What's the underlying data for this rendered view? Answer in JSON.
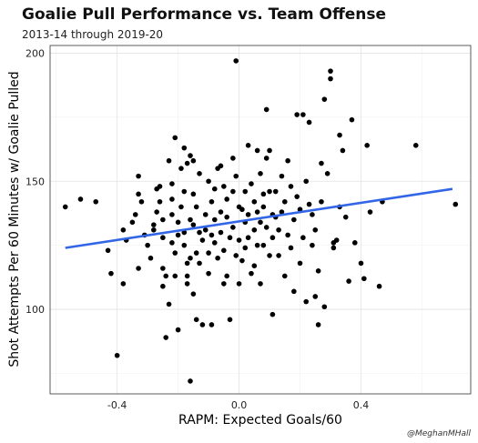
{
  "chart_data": {
    "type": "scatter",
    "title": "Goalie Pull Performance vs. Team Offense",
    "subtitle": "2013-14 through 2019-20",
    "xlabel": "RAPM: Expected Goals/60",
    "ylabel": "Shot Attempts Per 60 Minutes w/ Goalie Pulled",
    "caption": "@MeghanMHall",
    "xlim": [
      -0.62,
      0.76
    ],
    "ylim": [
      67,
      203
    ],
    "x_ticks": [
      -0.4,
      0.0,
      0.4
    ],
    "x_tick_labels": [
      "-0.4",
      "0.0",
      "0.4"
    ],
    "y_ticks": [
      100,
      150,
      200
    ],
    "y_tick_labels": [
      "100",
      "150",
      "200"
    ],
    "grid": true,
    "trend_line": {
      "x": [
        -0.57,
        0.7
      ],
      "y": [
        124,
        147
      ],
      "color": "#3366e6"
    },
    "point_color": "#000000",
    "points": [
      [
        -0.57,
        140
      ],
      [
        -0.52,
        143
      ],
      [
        -0.47,
        142
      ],
      [
        -0.43,
        123
      ],
      [
        -0.42,
        114
      ],
      [
        -0.4,
        82
      ],
      [
        -0.38,
        110
      ],
      [
        -0.38,
        131
      ],
      [
        -0.37,
        127
      ],
      [
        -0.35,
        134
      ],
      [
        -0.34,
        137
      ],
      [
        -0.33,
        145
      ],
      [
        -0.33,
        116
      ],
      [
        -0.33,
        152
      ],
      [
        -0.32,
        142
      ],
      [
        -0.31,
        129
      ],
      [
        -0.3,
        125
      ],
      [
        -0.29,
        120
      ],
      [
        -0.28,
        131
      ],
      [
        -0.28,
        133
      ],
      [
        -0.27,
        147
      ],
      [
        -0.27,
        138
      ],
      [
        -0.26,
        142
      ],
      [
        -0.26,
        148
      ],
      [
        -0.25,
        135
      ],
      [
        -0.25,
        128
      ],
      [
        -0.25,
        116
      ],
      [
        -0.25,
        109
      ],
      [
        -0.24,
        113
      ],
      [
        -0.24,
        89
      ],
      [
        -0.23,
        102
      ],
      [
        -0.23,
        158
      ],
      [
        -0.22,
        137
      ],
      [
        -0.22,
        126
      ],
      [
        -0.22,
        143
      ],
      [
        -0.22,
        149
      ],
      [
        -0.21,
        167
      ],
      [
        -0.21,
        113
      ],
      [
        -0.21,
        122
      ],
      [
        -0.2,
        129
      ],
      [
        -0.2,
        92
      ],
      [
        -0.2,
        134
      ],
      [
        -0.19,
        140
      ],
      [
        -0.19,
        155
      ],
      [
        -0.18,
        125
      ],
      [
        -0.18,
        163
      ],
      [
        -0.18,
        146
      ],
      [
        -0.18,
        130
      ],
      [
        -0.17,
        113
      ],
      [
        -0.17,
        157
      ],
      [
        -0.17,
        118
      ],
      [
        -0.17,
        110
      ],
      [
        -0.16,
        72
      ],
      [
        -0.16,
        120
      ],
      [
        -0.16,
        135
      ],
      [
        -0.16,
        160
      ],
      [
        -0.15,
        158
      ],
      [
        -0.15,
        145
      ],
      [
        -0.15,
        133
      ],
      [
        -0.15,
        106
      ],
      [
        -0.14,
        96
      ],
      [
        -0.14,
        122
      ],
      [
        -0.14,
        140
      ],
      [
        -0.13,
        130
      ],
      [
        -0.13,
        153
      ],
      [
        -0.13,
        118
      ],
      [
        -0.12,
        127
      ],
      [
        -0.12,
        94
      ],
      [
        -0.11,
        137
      ],
      [
        -0.11,
        131
      ],
      [
        -0.1,
        122
      ],
      [
        -0.1,
        150
      ],
      [
        -0.1,
        114
      ],
      [
        -0.09,
        94
      ],
      [
        -0.09,
        142
      ],
      [
        -0.09,
        129
      ],
      [
        -0.08,
        135
      ],
      [
        -0.08,
        126
      ],
      [
        -0.08,
        147
      ],
      [
        -0.07,
        155
      ],
      [
        -0.07,
        120
      ],
      [
        -0.06,
        156
      ],
      [
        -0.06,
        138
      ],
      [
        -0.06,
        130
      ],
      [
        -0.05,
        123
      ],
      [
        -0.05,
        110
      ],
      [
        -0.05,
        148
      ],
      [
        -0.04,
        143
      ],
      [
        -0.04,
        136
      ],
      [
        -0.04,
        113
      ],
      [
        -0.03,
        128
      ],
      [
        -0.03,
        96
      ],
      [
        -0.02,
        146
      ],
      [
        -0.02,
        159
      ],
      [
        -0.02,
        132
      ],
      [
        -0.01,
        197
      ],
      [
        -0.01,
        121
      ],
      [
        -0.01,
        152
      ],
      [
        0.0,
        140
      ],
      [
        0.0,
        127
      ],
      [
        0.0,
        110
      ],
      [
        0.01,
        139
      ],
      [
        0.01,
        119
      ],
      [
        0.02,
        146
      ],
      [
        0.02,
        134
      ],
      [
        0.02,
        124
      ],
      [
        0.03,
        164
      ],
      [
        0.03,
        137
      ],
      [
        0.03,
        128
      ],
      [
        0.04,
        114
      ],
      [
        0.04,
        149
      ],
      [
        0.05,
        142
      ],
      [
        0.05,
        131
      ],
      [
        0.05,
        117
      ],
      [
        0.06,
        162
      ],
      [
        0.06,
        138
      ],
      [
        0.06,
        125
      ],
      [
        0.07,
        153
      ],
      [
        0.07,
        134
      ],
      [
        0.07,
        110
      ],
      [
        0.08,
        145
      ],
      [
        0.08,
        125
      ],
      [
        0.08,
        140
      ],
      [
        0.09,
        178
      ],
      [
        0.09,
        159
      ],
      [
        0.09,
        132
      ],
      [
        0.1,
        162
      ],
      [
        0.1,
        146
      ],
      [
        0.1,
        121
      ],
      [
        0.11,
        137
      ],
      [
        0.11,
        128
      ],
      [
        0.11,
        98
      ],
      [
        0.12,
        146
      ],
      [
        0.12,
        136
      ],
      [
        0.13,
        131
      ],
      [
        0.13,
        121
      ],
      [
        0.14,
        152
      ],
      [
        0.14,
        138
      ],
      [
        0.15,
        113
      ],
      [
        0.15,
        142
      ],
      [
        0.16,
        129
      ],
      [
        0.16,
        158
      ],
      [
        0.17,
        124
      ],
      [
        0.17,
        148
      ],
      [
        0.18,
        135
      ],
      [
        0.18,
        107
      ],
      [
        0.19,
        144
      ],
      [
        0.19,
        176
      ],
      [
        0.2,
        118
      ],
      [
        0.2,
        139
      ],
      [
        0.21,
        128
      ],
      [
        0.21,
        176
      ],
      [
        0.22,
        103
      ],
      [
        0.22,
        150
      ],
      [
        0.23,
        141
      ],
      [
        0.23,
        173
      ],
      [
        0.24,
        125
      ],
      [
        0.24,
        137
      ],
      [
        0.25,
        131
      ],
      [
        0.25,
        105
      ],
      [
        0.26,
        115
      ],
      [
        0.26,
        94
      ],
      [
        0.27,
        142
      ],
      [
        0.27,
        157
      ],
      [
        0.28,
        101
      ],
      [
        0.28,
        182
      ],
      [
        0.29,
        153
      ],
      [
        0.3,
        193
      ],
      [
        0.3,
        190
      ],
      [
        0.31,
        126
      ],
      [
        0.31,
        124
      ],
      [
        0.32,
        127
      ],
      [
        0.33,
        168
      ],
      [
        0.33,
        140
      ],
      [
        0.34,
        162
      ],
      [
        0.35,
        136
      ],
      [
        0.36,
        111
      ],
      [
        0.37,
        174
      ],
      [
        0.38,
        126
      ],
      [
        0.4,
        118
      ],
      [
        0.41,
        112
      ],
      [
        0.42,
        164
      ],
      [
        0.43,
        138
      ],
      [
        0.46,
        109
      ],
      [
        0.47,
        142
      ],
      [
        0.58,
        164
      ],
      [
        0.71,
        141
      ]
    ]
  }
}
